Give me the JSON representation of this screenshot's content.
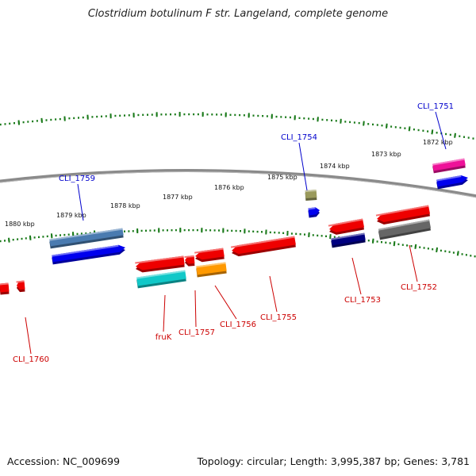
{
  "title": "Clostridium botulinum F str. Langeland, complete genome",
  "footer": {
    "accession": "Accession: NC_009699",
    "topology": "Topology: circular; Length: 3,995,387 bp; Genes: 3,781"
  },
  "colors": {
    "backbone": "#8a8a8a",
    "tick": "#1a7a1a",
    "label_top": "#0000cc",
    "label_bottom": "#cc0000",
    "red": "#ee0000",
    "blue": "#0000ee",
    "steelblue": "#4a7bb0",
    "cyan": "#11c8c8",
    "orange": "#ff9900",
    "navy": "#000080",
    "grey": "#666666",
    "magenta": "#ee1199",
    "olive": "#9a9a5c"
  },
  "scale_labels": [
    "1880 kbp",
    "1879 kbp",
    "1878 kbp",
    "1877 kbp",
    "1876 kbp",
    "1875 kbp",
    "1874 kbp",
    "1873 kbp",
    "1872 kbp"
  ],
  "gene_labels": {
    "top": [
      "CLI_1759",
      "CLI_1754",
      "CLI_1751"
    ],
    "bottom": [
      "CLI_1760",
      "fruK",
      "CLI_1757",
      "CLI_1756",
      "CLI_1755",
      "CLI_1753",
      "CLI_1752"
    ]
  }
}
